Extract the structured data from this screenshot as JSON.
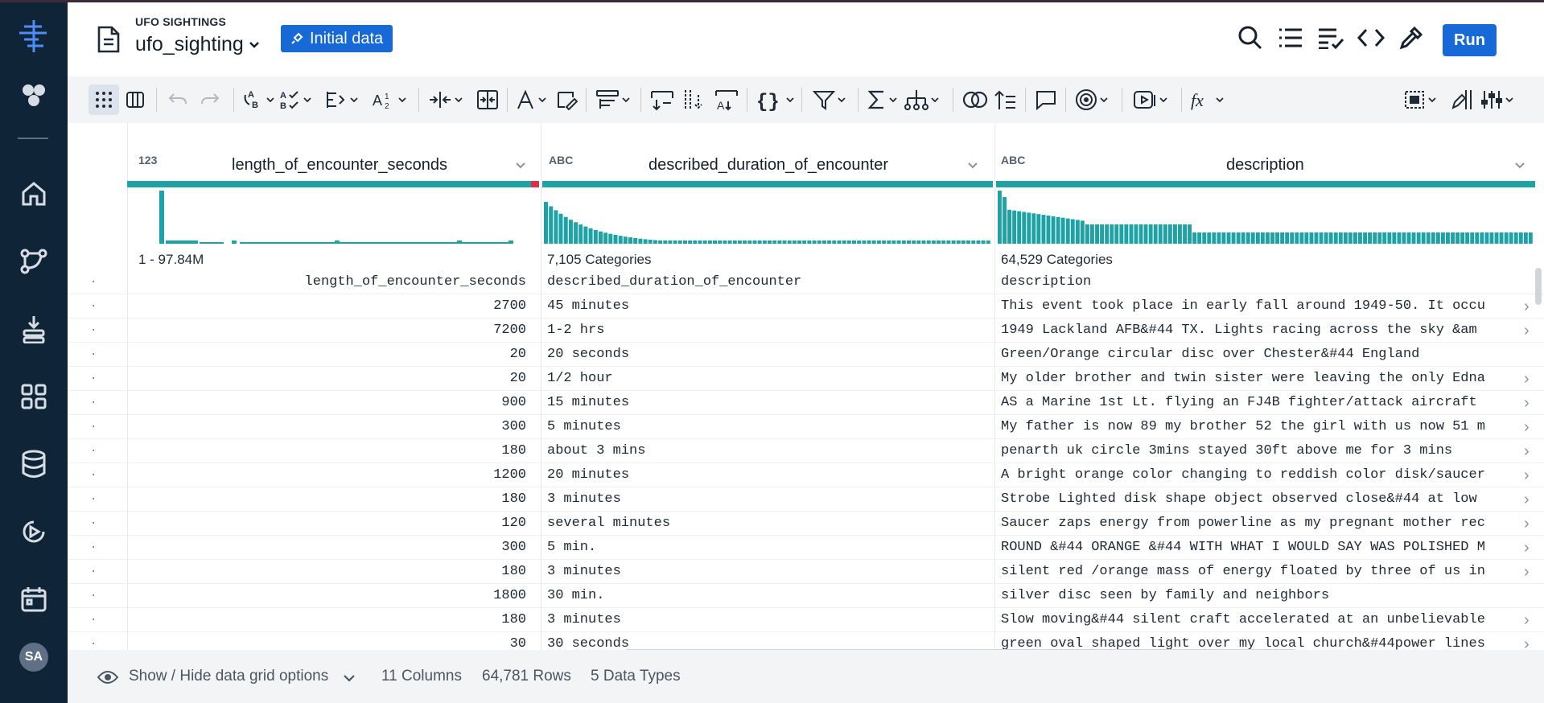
{
  "header": {
    "project_label": "UFO SIGHTINGS",
    "file_name": "ufo_sighting",
    "initial_button": "Initial data",
    "run_button": "Run"
  },
  "icons": {
    "sidebar": [
      "logo-icon",
      "hexagons-icon",
      "home-icon",
      "flow-icon",
      "import-icon",
      "apps-icon",
      "database-icon",
      "play-icon",
      "calendar-icon"
    ],
    "header": [
      "search-icon",
      "list-icon",
      "checklist-icon",
      "code-icon",
      "eyedropper-icon"
    ]
  },
  "user": {
    "initials": "SA"
  },
  "grid": {
    "columns": [
      {
        "name": "length_of_encounter_seconds",
        "type_icon": "123",
        "summary": "1 - 97.84M"
      },
      {
        "name": "described_duration_of_encounter",
        "type_icon": "ABC",
        "summary": "7,105 Categories"
      },
      {
        "name": "description",
        "type_icon": "ABC",
        "summary": "64,529 Categories"
      }
    ],
    "rows": [
      [
        "length_of_encounter_seconds",
        "described_duration_of_encounter",
        "description"
      ],
      [
        "2700",
        "45 minutes",
        "This event took place in early fall around 1949-50. It occu"
      ],
      [
        "7200",
        "1-2 hrs",
        "1949 Lackland AFB&#44 TX.  Lights racing across the sky &am"
      ],
      [
        "20",
        "20 seconds",
        "Green/Orange circular disc over Chester&#44 England"
      ],
      [
        "20",
        "1/2 hour",
        "My older brother and twin sister were leaving the only Edna"
      ],
      [
        "900",
        "15 minutes",
        "AS a Marine 1st Lt. flying an FJ4B fighter/attack aircraft"
      ],
      [
        "300",
        "5 minutes",
        "My father is now 89 my brother 52 the girl with us now 51 m"
      ],
      [
        "180",
        "about 3 mins",
        "penarth uk  circle  3mins  stayed 30ft above me for 3 mins"
      ],
      [
        "1200",
        "20 minutes",
        "A bright orange color changing to reddish color disk/saucer"
      ],
      [
        "180",
        "3  minutes",
        "Strobe Lighted disk shape object observed close&#44 at low"
      ],
      [
        "120",
        "several minutes",
        "Saucer zaps energy from powerline as my pregnant mother rec"
      ],
      [
        "300",
        "5 min.",
        "ROUND &#44 ORANGE &#44 WITH WHAT I WOULD SAY WAS POLISHED M"
      ],
      [
        "180",
        "3 minutes",
        "silent red /orange mass of energy floated by three of us in"
      ],
      [
        "1800",
        "30 min.",
        "silver disc seen by family and neighbors"
      ],
      [
        "180",
        "3 minutes",
        "Slow moving&#44 silent craft accelerated at an unbelievable"
      ],
      [
        "30",
        "30 seconds",
        "green oval shaped light over my local church&#44power lines"
      ]
    ],
    "row_marker": "·"
  },
  "footer": {
    "grid_options": "Show / Hide data grid options",
    "columns": "11 Columns",
    "rows": "64,781 Rows",
    "types": "5 Data Types"
  },
  "colors": {
    "accent": "#1769d8",
    "sidebar": "#0f2436",
    "histogram": "#1da3a5"
  }
}
